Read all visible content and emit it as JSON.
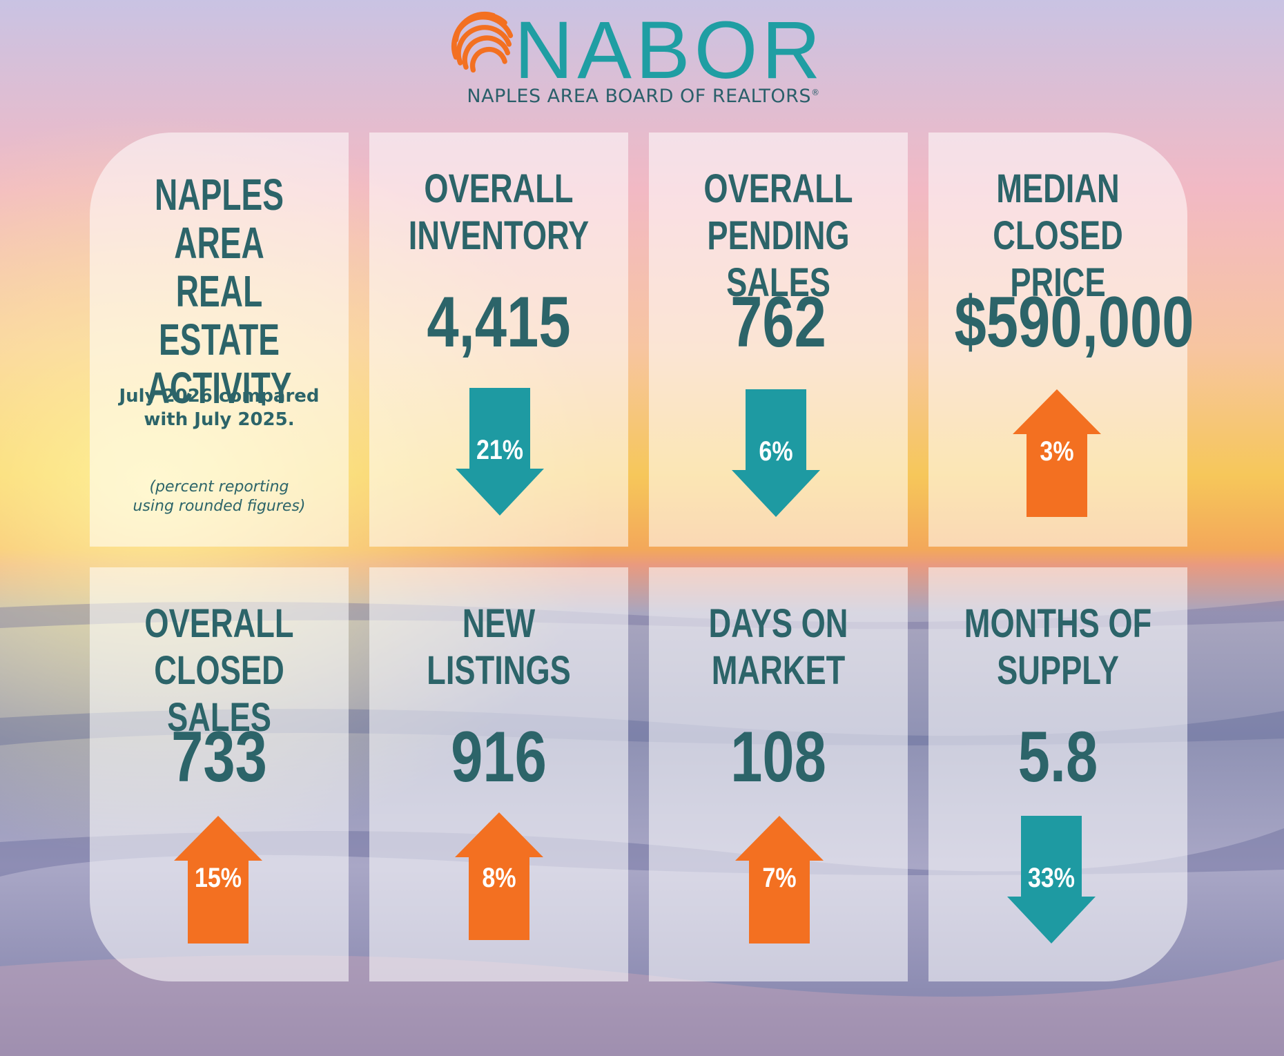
{
  "brand": {
    "name": "NABOR",
    "tagline": "NAPLES AREA BOARD OF REALTORS",
    "registered_mark": "®"
  },
  "colors": {
    "teal": "#1f9ea3",
    "dark_teal": "#2c6469",
    "orange": "#f37021"
  },
  "intro": {
    "title": "NAPLES\nAREA\nREAL ESTATE\nACTIVITY",
    "subtitle": "July 2026 compared\nwith July 2025.",
    "note": "(percent reporting\nusing rounded figures)"
  },
  "metrics": [
    {
      "title": "OVERALL\nINVENTORY",
      "value": "4,415",
      "direction": "down",
      "pct": "21%"
    },
    {
      "title": "OVERALL\nPENDING SALES",
      "value": "762",
      "direction": "down",
      "pct": "6%"
    },
    {
      "title": "MEDIAN\nCLOSED PRICE",
      "value": "$590,000",
      "direction": "up",
      "pct": "3%"
    },
    {
      "title": "OVERALL\nCLOSED SALES",
      "value": "733",
      "direction": "up",
      "pct": "15%"
    },
    {
      "title": "NEW\nLISTINGS",
      "value": "916",
      "direction": "up",
      "pct": "8%"
    },
    {
      "title": "DAYS ON\nMARKET",
      "value": "108",
      "direction": "up",
      "pct": "7%"
    },
    {
      "title": "MONTHS OF\nSUPPLY",
      "value": "5.8",
      "direction": "down",
      "pct": "33%"
    }
  ]
}
